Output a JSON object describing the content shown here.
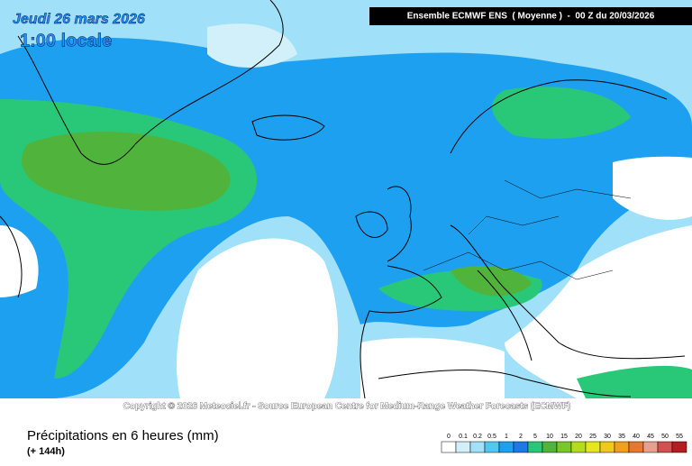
{
  "header": {
    "date": "Jeudi 26 mars 2026",
    "time": "1:00 locale",
    "run": "Ensemble ECMWF ENS  ( Moyenne )  -  00 Z du 20/03/2026"
  },
  "map": {
    "credit": "Copyright © 2026 Meteociel.fr - Source European Centre for Medium-Range Weather Forecasts (ECMWF)"
  },
  "footer": {
    "variable": "Précipitations en 6 heures (mm)",
    "lead": "(+ 144h)"
  },
  "legend": {
    "labels": [
      "0",
      "0.1",
      "0.2",
      "0.5",
      "1",
      "2",
      "5",
      "10",
      "15",
      "20",
      "25",
      "30",
      "35",
      "40",
      "45",
      "50",
      "55"
    ],
    "colors": [
      "#ffffff",
      "#d2f0fa",
      "#a0e0f8",
      "#50c8f0",
      "#1ea0f0",
      "#1e78e6",
      "#28c878",
      "#50b43c",
      "#78c828",
      "#b4dc1e",
      "#e6e61e",
      "#f0c81e",
      "#f0a01e",
      "#e67832",
      "#e6a08c",
      "#d25050",
      "#b41e1e"
    ]
  }
}
